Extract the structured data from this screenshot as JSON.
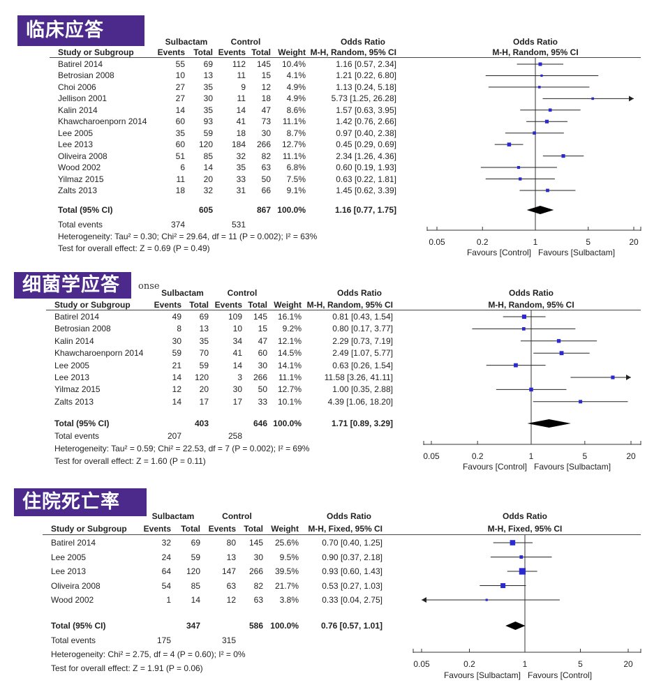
{
  "chart_data": [
    {
      "type": "forest",
      "title": "临床应答",
      "headers": {
        "group1": "Sulbactam",
        "group2": "Control",
        "or_title": "Odds Ratio",
        "study": "Study or Subgroup",
        "events": "Events",
        "total": "Total",
        "weight": "Weight",
        "method": "M-H, Random, 95% CI"
      },
      "studies": [
        {
          "name": "Batirel 2014",
          "e1": "55",
          "t1": "69",
          "e2": "112",
          "t2": "145",
          "weight": "10.4%",
          "ci": "1.16 [0.57, 2.34]"
        },
        {
          "name": "Betrosian 2008",
          "e1": "10",
          "t1": "13",
          "e2": "11",
          "t2": "15",
          "weight": "4.1%",
          "ci": "1.21 [0.22, 6.80]"
        },
        {
          "name": "Choi 2006",
          "e1": "27",
          "t1": "35",
          "e2": "9",
          "t2": "12",
          "weight": "4.9%",
          "ci": "1.13 [0.24, 5.18]"
        },
        {
          "name": "Jellison 2001",
          "e1": "27",
          "t1": "30",
          "e2": "11",
          "t2": "18",
          "weight": "4.9%",
          "ci": "5.73 [1.25, 26.28]"
        },
        {
          "name": "Kalin 2014",
          "e1": "14",
          "t1": "35",
          "e2": "14",
          "t2": "47",
          "weight": "8.6%",
          "ci": "1.57 [0.63, 3.95]"
        },
        {
          "name": "Khawcharoenporn 2014",
          "e1": "60",
          "t1": "93",
          "e2": "41",
          "t2": "73",
          "weight": "11.1%",
          "ci": "1.42 [0.76, 2.66]"
        },
        {
          "name": "Lee 2005",
          "e1": "35",
          "t1": "59",
          "e2": "18",
          "t2": "30",
          "weight": "8.7%",
          "ci": "0.97 [0.40, 2.38]"
        },
        {
          "name": "Lee 2013",
          "e1": "60",
          "t1": "120",
          "e2": "184",
          "t2": "266",
          "weight": "12.7%",
          "ci": "0.45 [0.29, 0.69]"
        },
        {
          "name": "Oliveira 2008",
          "e1": "51",
          "t1": "85",
          "e2": "32",
          "t2": "82",
          "weight": "11.1%",
          "ci": "2.34 [1.26, 4.36]"
        },
        {
          "name": "Wood 2002",
          "e1": "6",
          "t1": "14",
          "e2": "35",
          "t2": "63",
          "weight": "6.8%",
          "ci": "0.60 [0.19, 1.93]"
        },
        {
          "name": "Yilmaz 2015",
          "e1": "11",
          "t1": "20",
          "e2": "33",
          "t2": "50",
          "weight": "7.5%",
          "ci": "0.63 [0.22, 1.81]"
        },
        {
          "name": "Zalts 2013",
          "e1": "18",
          "t1": "32",
          "e2": "31",
          "t2": "66",
          "weight": "9.1%",
          "ci": "1.45 [0.62, 3.39]"
        }
      ],
      "total": {
        "label": "Total (95% CI)",
        "t1": "605",
        "t2": "867",
        "weight": "100.0%",
        "ci": "1.16 [0.77, 1.75]"
      },
      "total_events": {
        "label": "Total events",
        "e1": "374",
        "e2": "531"
      },
      "heterogeneity": "Heterogeneity: Tau² = 0.30; Chi² = 29.64, df = 11 (P = 0.002); I² = 63%",
      "overall_effect": "Test for overall effect: Z = 0.69 (P = 0.49)",
      "axis": {
        "scale": "log",
        "range": [
          0.05,
          20
        ],
        "ticks": [
          "0.05",
          "0.2",
          "1",
          "5",
          "20"
        ],
        "favours_left": "Favours [Control]",
        "favours_right": "Favours [Sulbactam]"
      }
    },
    {
      "type": "forest",
      "title": "细菌学应答",
      "partial_label": "onse",
      "headers": {
        "group1": "Sulbactam",
        "group2": "Control",
        "or_title": "Odds Ratio",
        "study": "Study or Subgroup",
        "events": "Events",
        "total": "Total",
        "weight": "Weight",
        "method": "M-H, Random, 95% CI"
      },
      "studies": [
        {
          "name": "Batirel 2014",
          "e1": "49",
          "t1": "69",
          "e2": "109",
          "t2": "145",
          "weight": "16.1%",
          "ci": "0.81 [0.43, 1.54]"
        },
        {
          "name": "Betrosian 2008",
          "e1": "8",
          "t1": "13",
          "e2": "10",
          "t2": "15",
          "weight": "9.2%",
          "ci": "0.80 [0.17, 3.77]"
        },
        {
          "name": "Kalin 2014",
          "e1": "30",
          "t1": "35",
          "e2": "34",
          "t2": "47",
          "weight": "12.1%",
          "ci": "2.29 [0.73, 7.19]"
        },
        {
          "name": "Khawcharoenporn 2014",
          "e1": "59",
          "t1": "70",
          "e2": "41",
          "t2": "60",
          "weight": "14.5%",
          "ci": "2.49 [1.07, 5.77]"
        },
        {
          "name": "Lee 2005",
          "e1": "21",
          "t1": "59",
          "e2": "14",
          "t2": "30",
          "weight": "14.1%",
          "ci": "0.63 [0.26, 1.54]"
        },
        {
          "name": "Lee 2013",
          "e1": "14",
          "t1": "120",
          "e2": "3",
          "t2": "266",
          "weight": "11.1%",
          "ci": "11.58 [3.26, 41.11]"
        },
        {
          "name": "Yilmaz 2015",
          "e1": "12",
          "t1": "20",
          "e2": "30",
          "t2": "50",
          "weight": "12.7%",
          "ci": "1.00 [0.35, 2.88]"
        },
        {
          "name": "Zalts 2013",
          "e1": "14",
          "t1": "17",
          "e2": "17",
          "t2": "33",
          "weight": "10.1%",
          "ci": "4.39 [1.06, 18.20]"
        }
      ],
      "total": {
        "label": "Total (95% CI)",
        "t1": "403",
        "t2": "646",
        "weight": "100.0%",
        "ci": "1.71 [0.89, 3.29]"
      },
      "total_events": {
        "label": "Total events",
        "e1": "207",
        "e2": "258"
      },
      "heterogeneity": "Heterogeneity: Tau² = 0.59; Chi² = 22.53, df = 7 (P = 0.002); I² = 69%",
      "overall_effect": "Test for overall effect: Z = 1.60 (P = 0.11)",
      "axis": {
        "scale": "log",
        "range": [
          0.05,
          20
        ],
        "ticks": [
          "0.05",
          "0.2",
          "1",
          "5",
          "20"
        ],
        "favours_left": "Favours [Control]",
        "favours_right": "Favours [Sulbactam]"
      }
    },
    {
      "type": "forest",
      "title": "住院死亡率",
      "headers": {
        "group1": "Sulbactam",
        "group2": "Control",
        "or_title": "Odds Ratio",
        "study": "Study or Subgroup",
        "events": "Events",
        "total": "Total",
        "weight": "Weight",
        "method": "M-H, Fixed, 95% CI"
      },
      "studies": [
        {
          "name": "Batirel 2014",
          "e1": "32",
          "t1": "69",
          "e2": "80",
          "t2": "145",
          "weight": "25.6%",
          "ci": "0.70 [0.40, 1.25]"
        },
        {
          "name": "Lee 2005",
          "e1": "24",
          "t1": "59",
          "e2": "13",
          "t2": "30",
          "weight": "9.5%",
          "ci": "0.90 [0.37, 2.18]"
        },
        {
          "name": "Lee 2013",
          "e1": "64",
          "t1": "120",
          "e2": "147",
          "t2": "266",
          "weight": "39.5%",
          "ci": "0.93 [0.60, 1.43]"
        },
        {
          "name": "Oliveira 2008",
          "e1": "54",
          "t1": "85",
          "e2": "63",
          "t2": "82",
          "weight": "21.7%",
          "ci": "0.53 [0.27, 1.03]"
        },
        {
          "name": "Wood 2002",
          "e1": "1",
          "t1": "14",
          "e2": "12",
          "t2": "63",
          "weight": "3.8%",
          "ci": "0.33 [0.04, 2.75]"
        }
      ],
      "total": {
        "label": "Total (95% CI)",
        "t1": "347",
        "t2": "586",
        "weight": "100.0%",
        "ci": "0.76 [0.57, 1.01]"
      },
      "total_events": {
        "label": "Total events",
        "e1": "175",
        "e2": "315"
      },
      "heterogeneity": "Heterogeneity: Chi² = 2.75, df = 4 (P = 0.60); I² = 0%",
      "overall_effect": "Test for overall effect: Z = 1.91 (P = 0.06)",
      "axis": {
        "scale": "log",
        "range": [
          0.05,
          20
        ],
        "ticks": [
          "0.05",
          "0.2",
          "1",
          "5",
          "20"
        ],
        "favours_left": "Favours [Sulbactam]",
        "favours_right": "Favours [Control]"
      }
    }
  ],
  "colors": {
    "badge": "#4b2a8c",
    "marker": "#2a2ad0",
    "diamond": "#000000"
  }
}
